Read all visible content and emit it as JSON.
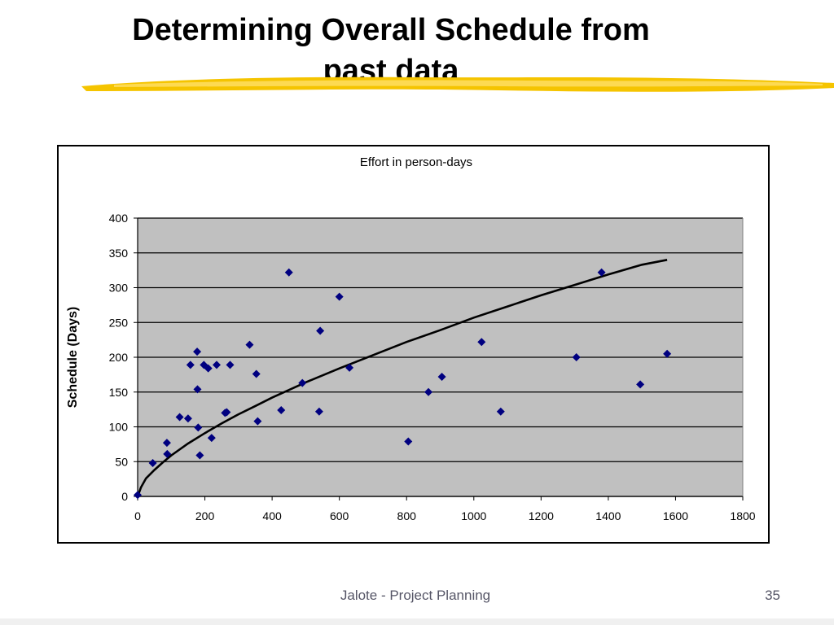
{
  "slide": {
    "title_line1": "Determining Overall Schedule from",
    "title_line2": "past data",
    "footer": "Jalote - Project Planning",
    "page_number": "35",
    "accent_color": "#f5c400"
  },
  "chart_data": {
    "type": "scatter",
    "title": "Effort in person-days",
    "xlabel": "",
    "ylabel": "Schedule (Days)",
    "xlim": [
      0,
      1800
    ],
    "ylim": [
      0,
      400
    ],
    "xticks": [
      0,
      200,
      400,
      600,
      800,
      1000,
      1200,
      1400,
      1600,
      1800
    ],
    "yticks": [
      0,
      50,
      100,
      150,
      200,
      250,
      300,
      350,
      400
    ],
    "grid": "horizontal",
    "plot_background": "#c0c0c0",
    "series": [
      {
        "type": "scatter",
        "marker": "diamond",
        "color": "#000080",
        "points": [
          [
            0,
            2
          ],
          [
            45,
            48
          ],
          [
            87,
            77
          ],
          [
            88,
            61
          ],
          [
            125,
            114
          ],
          [
            150,
            112
          ],
          [
            157,
            189
          ],
          [
            177,
            208
          ],
          [
            178,
            154
          ],
          [
            180,
            99
          ],
          [
            185,
            59
          ],
          [
            197,
            189
          ],
          [
            210,
            184
          ],
          [
            220,
            84
          ],
          [
            235,
            189
          ],
          [
            260,
            120
          ],
          [
            265,
            121
          ],
          [
            275,
            189
          ],
          [
            333,
            218
          ],
          [
            353,
            176
          ],
          [
            357,
            108
          ],
          [
            427,
            124
          ],
          [
            450,
            322
          ],
          [
            490,
            163
          ],
          [
            540,
            122
          ],
          [
            543,
            238
          ],
          [
            600,
            287
          ],
          [
            630,
            185
          ],
          [
            805,
            79
          ],
          [
            865,
            150
          ],
          [
            905,
            172
          ],
          [
            1023,
            222
          ],
          [
            1080,
            122
          ],
          [
            1305,
            200
          ],
          [
            1380,
            322
          ],
          [
            1495,
            161
          ],
          [
            1575,
            205
          ]
        ]
      },
      {
        "type": "line",
        "color": "#000000",
        "fit": "power",
        "points": [
          [
            0,
            0
          ],
          [
            10,
            13
          ],
          [
            25,
            26
          ],
          [
            50,
            38
          ],
          [
            75,
            49
          ],
          [
            100,
            59
          ],
          [
            150,
            76
          ],
          [
            200,
            91
          ],
          [
            250,
            105
          ],
          [
            300,
            118
          ],
          [
            350,
            130
          ],
          [
            400,
            142
          ],
          [
            450,
            153
          ],
          [
            500,
            164
          ],
          [
            600,
            184
          ],
          [
            700,
            203
          ],
          [
            800,
            222
          ],
          [
            900,
            239
          ],
          [
            1000,
            257
          ],
          [
            1100,
            273
          ],
          [
            1200,
            289
          ],
          [
            1300,
            304
          ],
          [
            1400,
            319
          ],
          [
            1500,
            333
          ],
          [
            1575,
            340
          ]
        ]
      }
    ]
  }
}
